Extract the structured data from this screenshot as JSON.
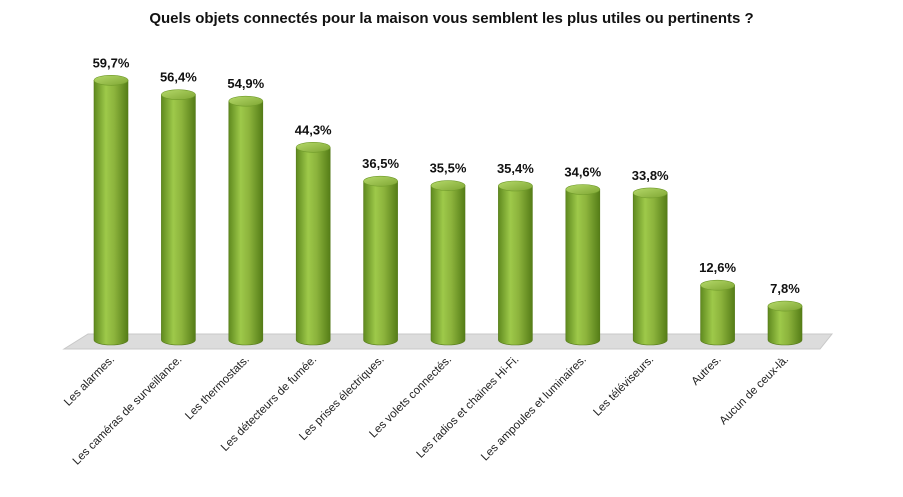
{
  "chart_data": {
    "type": "bar",
    "title": "Quels objets connectés pour la maison vous semblent les plus utiles ou pertinents ?",
    "categories": [
      "Les alarmes.",
      "Les caméras de surveillance.",
      "Les thermostats.",
      "Les détecteurs de fumée.",
      "Les prises électriques.",
      "Les volets connectés.",
      "Les radios et chaines Hi-Fi.",
      "Les ampoules et luminaires.",
      "Les téléviseurs.",
      "Autres.",
      "Aucun de ceux-là."
    ],
    "values": [
      59.7,
      56.4,
      54.9,
      44.3,
      36.5,
      35.5,
      35.4,
      34.6,
      33.8,
      12.6,
      7.8
    ],
    "value_labels": [
      "59,7%",
      "56,4%",
      "54,9%",
      "44,3%",
      "36,5%",
      "35,5%",
      "35,4%",
      "34,6%",
      "33,8%",
      "12,6%",
      "7,8%"
    ],
    "xlabel": "",
    "ylabel": "",
    "ylim": [
      0,
      60
    ],
    "grid": false,
    "legend": "none",
    "bar_color": "#8cb33c",
    "floor_color": "#dcdcdc"
  }
}
